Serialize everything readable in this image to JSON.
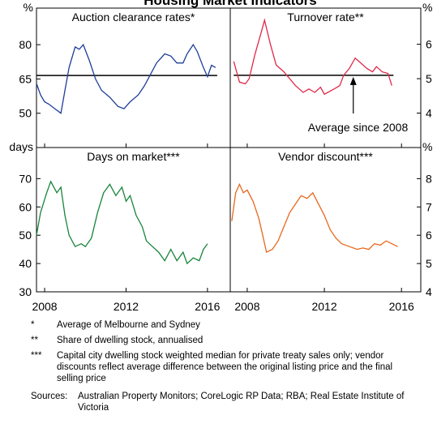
{
  "title": "Housing Market Indicators",
  "chart_data": [
    {
      "type": "line",
      "title": "Auction clearance rates*",
      "y_unit": "%",
      "axis_side": "left",
      "color": "#1f3d99",
      "xlim": [
        2007.6,
        2017.12
      ],
      "xticks": [
        2008,
        2012,
        2016
      ],
      "ylim": [
        35,
        96
      ],
      "yticks": [
        50,
        65,
        80
      ],
      "average": 66.5,
      "x": [
        2007.6,
        2007.8,
        2008.0,
        2008.2,
        2008.5,
        2008.8,
        2009.0,
        2009.2,
        2009.5,
        2009.7,
        2009.9,
        2010.2,
        2010.5,
        2010.8,
        2011.2,
        2011.6,
        2011.9,
        2012.2,
        2012.6,
        2012.9,
        2013.2,
        2013.5,
        2013.9,
        2014.2,
        2014.5,
        2014.8,
        2015.0,
        2015.3,
        2015.5,
        2015.8,
        2016.0,
        2016.2,
        2016.4
      ],
      "values": [
        63,
        58,
        55,
        54,
        52,
        50,
        60,
        70,
        79,
        78,
        80,
        73,
        65,
        60,
        57,
        53,
        52,
        55,
        58,
        62,
        67,
        72,
        76,
        75,
        72,
        72,
        76,
        80,
        77,
        70,
        66,
        71,
        70
      ]
    },
    {
      "type": "line",
      "title": "Turnover rate**",
      "y_unit": "%",
      "axis_side": "right",
      "color": "#e0294a",
      "xlim": [
        2007.12,
        2017.0
      ],
      "xticks": [
        2008,
        2012,
        2016
      ],
      "ylim": [
        3,
        7.05
      ],
      "yticks": [
        4,
        5,
        6
      ],
      "average": 5.1,
      "annotation": "Average since 2008",
      "annotation_x": 2013.5,
      "x": [
        2007.3,
        2007.6,
        2007.9,
        2008.1,
        2008.4,
        2008.7,
        2008.9,
        2009.2,
        2009.5,
        2009.9,
        2010.2,
        2010.5,
        2010.9,
        2011.2,
        2011.5,
        2011.8,
        2012.0,
        2012.5,
        2012.8,
        2013.0,
        2013.3,
        2013.6,
        2013.9,
        2014.2,
        2014.5,
        2014.7,
        2015.0,
        2015.3,
        2015.5
      ],
      "values": [
        5.5,
        4.9,
        4.85,
        5.0,
        5.7,
        6.3,
        6.7,
        6.0,
        5.4,
        5.2,
        5.0,
        4.8,
        4.6,
        4.7,
        4.6,
        4.75,
        4.55,
        4.7,
        4.8,
        5.1,
        5.3,
        5.6,
        5.45,
        5.3,
        5.2,
        5.35,
        5.2,
        5.15,
        4.8
      ]
    },
    {
      "type": "line",
      "title": "Days on market***",
      "y_unit": "days",
      "axis_side": "left",
      "color": "#17843a",
      "xlim": [
        2007.6,
        2017.12
      ],
      "xticks": [
        2008,
        2012,
        2016
      ],
      "ylim": [
        30,
        81
      ],
      "yticks": [
        30,
        40,
        50,
        60,
        70
      ],
      "x": [
        2007.6,
        2007.8,
        2008.1,
        2008.3,
        2008.6,
        2008.8,
        2009.0,
        2009.2,
        2009.5,
        2009.8,
        2010.0,
        2010.3,
        2010.6,
        2010.9,
        2011.2,
        2011.5,
        2011.8,
        2012.0,
        2012.2,
        2012.5,
        2012.8,
        2013.0,
        2013.3,
        2013.6,
        2013.9,
        2014.2,
        2014.5,
        2014.8,
        2015.0,
        2015.3,
        2015.6,
        2015.8,
        2016.0
      ],
      "values": [
        50,
        58,
        65,
        69,
        65,
        67,
        57,
        50,
        46,
        47,
        46,
        49,
        58,
        65,
        68,
        64,
        67,
        62,
        64,
        57,
        53,
        48,
        46,
        44,
        41,
        45,
        41,
        44,
        40,
        42,
        41,
        45,
        47
      ]
    },
    {
      "type": "line",
      "title": "Vendor discount***",
      "y_unit": "%",
      "axis_side": "right",
      "color": "#e8671b",
      "xlim": [
        2007.12,
        2017.0
      ],
      "xticks": [
        2008,
        2012,
        2016
      ],
      "ylim": [
        4,
        9.1
      ],
      "yticks": [
        4,
        5,
        6,
        7,
        8
      ],
      "x": [
        2007.2,
        2007.4,
        2007.6,
        2007.8,
        2008.0,
        2008.3,
        2008.6,
        2008.8,
        2009.0,
        2009.3,
        2009.6,
        2009.9,
        2010.2,
        2010.5,
        2010.8,
        2011.1,
        2011.4,
        2011.7,
        2012.0,
        2012.3,
        2012.6,
        2012.9,
        2013.3,
        2013.7,
        2014.0,
        2014.3,
        2014.6,
        2014.9,
        2015.2,
        2015.5,
        2015.8
      ],
      "values": [
        6.5,
        7.5,
        7.8,
        7.5,
        7.6,
        7.2,
        6.6,
        6.0,
        5.4,
        5.5,
        5.8,
        6.3,
        6.8,
        7.1,
        7.4,
        7.3,
        7.5,
        7.1,
        6.7,
        6.2,
        5.9,
        5.7,
        5.6,
        5.5,
        5.55,
        5.5,
        5.7,
        5.65,
        5.8,
        5.7,
        5.6
      ]
    }
  ],
  "notes": [
    {
      "marker": "*",
      "text": "Average of Melbourne and Sydney"
    },
    {
      "marker": "**",
      "text": "Share of dwelling stock, annualised"
    },
    {
      "marker": "***",
      "text": "Capital city dwelling stock weighted median for private treaty sales only; vendor discounts reflect average difference between the original listing price and the final selling price"
    }
  ],
  "sources": {
    "label": "Sources:",
    "text": "Australian Property Monitors; CoreLogic RP Data; RBA; Real Estate Institute of Victoria"
  }
}
